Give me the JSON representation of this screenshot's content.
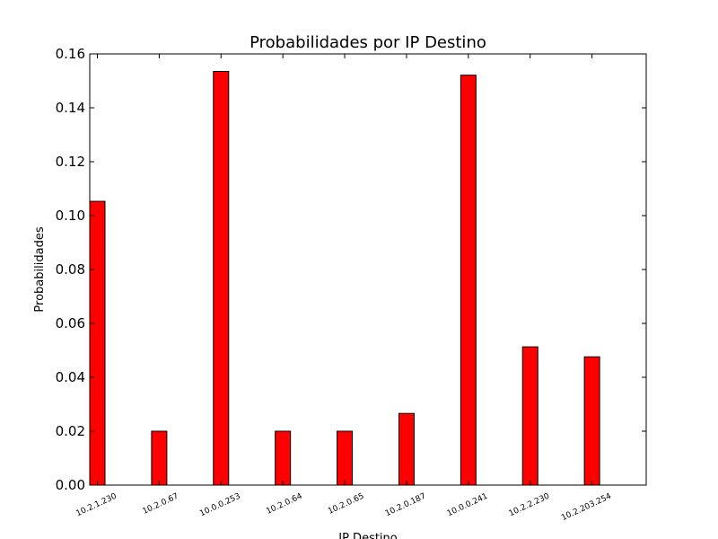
{
  "chart_data": {
    "type": "bar",
    "title": "Probabilidades por IP Destino",
    "xlabel": "IP Destino",
    "ylabel": "Probabilidades",
    "ylim": [
      0,
      0.16
    ],
    "yticks": [
      "0.00",
      "0.02",
      "0.04",
      "0.06",
      "0.08",
      "0.10",
      "0.12",
      "0.14",
      "0.16"
    ],
    "categories": [
      "10.2.1.230",
      "10.2.0.67",
      "10.0.0.253",
      "10.2.0.64",
      "10.2.0.65",
      "10.2.0.187",
      "10.0.0.241",
      "10.2.2.230",
      "10.2.203.254"
    ],
    "values": [
      0.1053,
      0.02,
      0.1535,
      0.02,
      0.02,
      0.0266,
      0.1521,
      0.0513,
      0.0476
    ],
    "bar_color": "#ff0000",
    "grid": false,
    "legend": "none"
  }
}
